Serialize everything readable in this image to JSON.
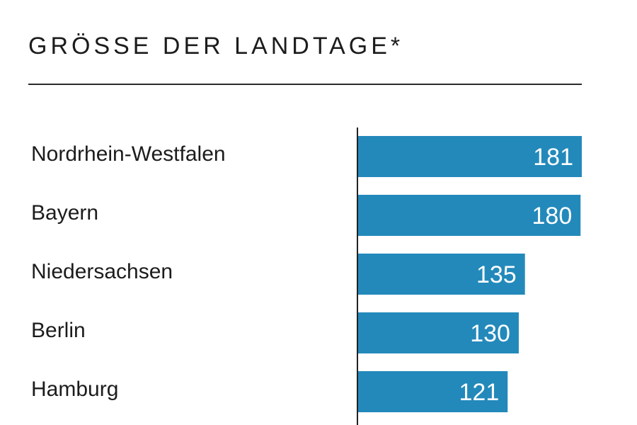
{
  "chart_data": {
    "type": "bar",
    "orientation": "horizontal",
    "title": "GRÖSSE DER LANDTAGE*",
    "categories": [
      "Nordrhein-Westfalen",
      "Bayern",
      "Niedersachsen",
      "Berlin",
      "Hamburg"
    ],
    "values": [
      181,
      180,
      135,
      130,
      121
    ],
    "value_labels": [
      "181",
      "180",
      "135",
      "130",
      "121"
    ],
    "xlim": [
      0,
      181
    ],
    "grid": false,
    "legend": "none",
    "bar_color": "#2389bb",
    "axis_color": "#222222"
  }
}
